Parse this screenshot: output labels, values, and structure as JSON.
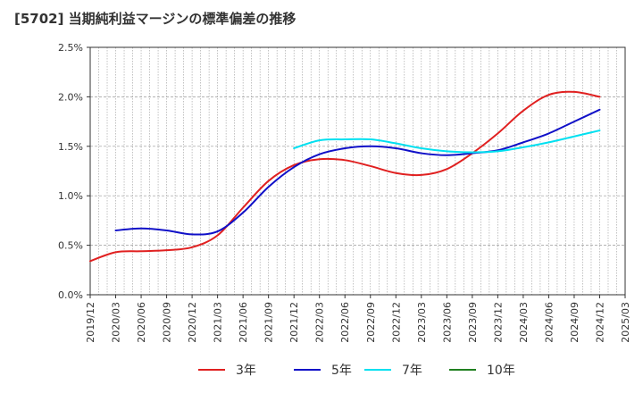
{
  "chart_data": {
    "type": "line",
    "title": "[5702]  当期純利益マージンの標準偏差の推移",
    "xlabel": "",
    "ylabel": "",
    "ylim": [
      0,
      0.025
    ],
    "y_ticks": [
      "0.0%",
      "0.5%",
      "1.0%",
      "1.5%",
      "2.0%",
      "2.5%"
    ],
    "x_ticks": [
      "2019/12",
      "2020/03",
      "2020/06",
      "2020/09",
      "2020/12",
      "2021/03",
      "2021/06",
      "2021/09",
      "2021/12",
      "2022/03",
      "2022/06",
      "2022/09",
      "2022/12",
      "2023/03",
      "2023/06",
      "2023/09",
      "2023/12",
      "2024/03",
      "2024/06",
      "2024/09",
      "2024/12",
      "2025/03"
    ],
    "grid": true,
    "legend_position": "bottom",
    "series": [
      {
        "name": "3年",
        "color": "#e02020",
        "x": [
          "2019/12",
          "2020/03",
          "2020/06",
          "2020/09",
          "2020/12",
          "2021/03",
          "2021/06",
          "2021/09",
          "2021/12",
          "2022/03",
          "2022/06",
          "2022/09",
          "2022/12",
          "2023/03",
          "2023/06",
          "2023/09",
          "2023/12",
          "2024/03",
          "2024/06",
          "2024/09",
          "2024/12"
        ],
        "values": [
          0.0034,
          0.0043,
          0.0044,
          0.0045,
          0.0048,
          0.006,
          0.0088,
          0.0115,
          0.0131,
          0.0137,
          0.0136,
          0.013,
          0.0123,
          0.0121,
          0.0127,
          0.0143,
          0.0163,
          0.0186,
          0.0202,
          0.0205,
          0.02
        ]
      },
      {
        "name": "5年",
        "color": "#1010c8",
        "x": [
          "2020/03",
          "2020/06",
          "2020/09",
          "2020/12",
          "2021/03",
          "2021/06",
          "2021/09",
          "2021/12",
          "2022/03",
          "2022/06",
          "2022/09",
          "2022/12",
          "2023/03",
          "2023/06",
          "2023/09",
          "2023/12",
          "2024/03",
          "2024/06",
          "2024/09",
          "2024/12"
        ],
        "values": [
          0.0065,
          0.0067,
          0.0065,
          0.0061,
          0.0064,
          0.0083,
          0.0109,
          0.0129,
          0.0142,
          0.0148,
          0.015,
          0.0148,
          0.0143,
          0.0141,
          0.0143,
          0.0146,
          0.0154,
          0.0163,
          0.0175,
          0.0187
        ]
      },
      {
        "name": "7年",
        "color": "#00e0f0",
        "x": [
          "2021/12",
          "2022/03",
          "2022/06",
          "2022/09",
          "2022/12",
          "2023/03",
          "2023/06",
          "2023/09",
          "2023/12",
          "2024/03",
          "2024/06",
          "2024/09",
          "2024/12"
        ],
        "values": [
          0.0148,
          0.0156,
          0.0157,
          0.0157,
          0.0153,
          0.0148,
          0.0145,
          0.0144,
          0.0145,
          0.0149,
          0.0154,
          0.016,
          0.0166
        ]
      },
      {
        "name": "10年",
        "color": "#208020",
        "x": [],
        "values": []
      }
    ]
  }
}
